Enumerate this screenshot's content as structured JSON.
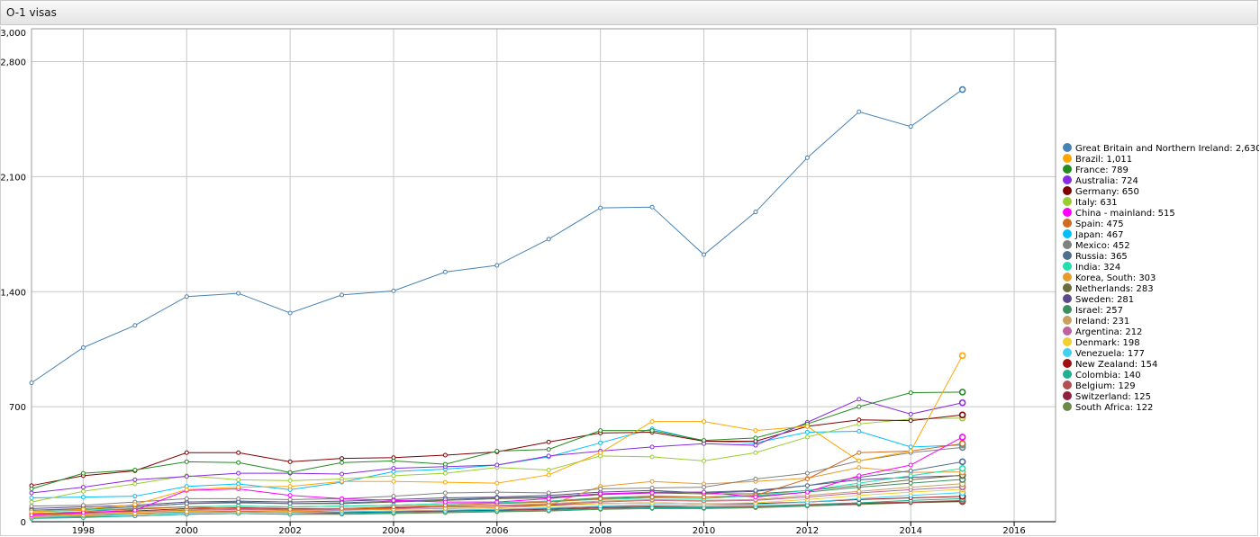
{
  "window": {
    "title": "O-1 visas"
  },
  "chart_data": {
    "type": "line",
    "title": "O-1 visas",
    "x": [
      1997,
      1998,
      1999,
      2000,
      2001,
      2002,
      2003,
      2004,
      2005,
      2006,
      2007,
      2008,
      2009,
      2010,
      2011,
      2012,
      2013,
      2014,
      2015
    ],
    "xlim": [
      1997,
      2016.8
    ],
    "ylim": [
      0,
      3000
    ],
    "x_ticks": [
      1998,
      2000,
      2002,
      2004,
      2006,
      2008,
      2010,
      2012,
      2014,
      2016
    ],
    "x_tick_labels": [
      "1998",
      "2000",
      "2002",
      "2004",
      "2006",
      "2008",
      "2010",
      "2012",
      "2014",
      "2016"
    ],
    "y_ticks": [
      0,
      700,
      1400,
      2100,
      2800,
      3000
    ],
    "y_tick_labels": [
      "0",
      "700",
      "1,400",
      "2,100",
      "2,800",
      "3,000"
    ],
    "grid": true,
    "legend_position": "right",
    "series": [
      {
        "name": "Great Britain and Northern Ireland",
        "label": "Great Britain and Northern Ireland: 2,630",
        "color": "#4682b4",
        "values": [
          845,
          1060,
          1195,
          1370,
          1390,
          1270,
          1380,
          1405,
          1520,
          1560,
          1720,
          1910,
          1915,
          1625,
          1885,
          2215,
          2495,
          2405,
          2630
        ]
      },
      {
        "name": "Brazil",
        "label": "Brazil: 1,011",
        "color": "#ffa500",
        "values": [
          60,
          75,
          105,
          195,
          210,
          215,
          245,
          245,
          240,
          235,
          285,
          420,
          610,
          610,
          555,
          580,
          370,
          430,
          1011
        ]
      },
      {
        "name": "France",
        "label": "France: 789",
        "color": "#228b22",
        "values": [
          200,
          295,
          315,
          365,
          360,
          300,
          360,
          370,
          350,
          430,
          440,
          555,
          555,
          495,
          510,
          595,
          700,
          785,
          789
        ]
      },
      {
        "name": "Australia",
        "label": "Australia: 724",
        "color": "#8a2be2",
        "values": [
          175,
          210,
          255,
          275,
          295,
          295,
          290,
          325,
          335,
          345,
          400,
          430,
          455,
          475,
          465,
          605,
          745,
          655,
          724
        ]
      },
      {
        "name": "Germany",
        "label": "Germany: 650",
        "color": "#800000",
        "values": [
          220,
          280,
          310,
          420,
          420,
          365,
          385,
          390,
          405,
          425,
          485,
          540,
          545,
          490,
          490,
          580,
          620,
          615,
          650
        ]
      },
      {
        "name": "Italy",
        "label": "Italy: 631",
        "color": "#9acd32",
        "values": [
          120,
          185,
          230,
          280,
          255,
          250,
          260,
          280,
          295,
          330,
          315,
          400,
          395,
          370,
          420,
          515,
          595,
          625,
          631
        ]
      },
      {
        "name": "China - mainland",
        "label": "China - mainland: 515",
        "color": "#ff00ff",
        "values": [
          40,
          55,
          70,
          190,
          200,
          160,
          140,
          130,
          120,
          120,
          140,
          170,
          175,
          180,
          150,
          180,
          280,
          345,
          515
        ]
      },
      {
        "name": "Spain",
        "label": "Spain: 475",
        "color": "#d2691e",
        "values": [
          50,
          60,
          80,
          90,
          80,
          75,
          80,
          90,
          100,
          110,
          120,
          140,
          150,
          150,
          160,
          260,
          420,
          430,
          475
        ]
      },
      {
        "name": "Japan",
        "label": "Japan: 467",
        "color": "#00bfff",
        "values": [
          145,
          150,
          155,
          215,
          230,
          195,
          240,
          305,
          320,
          345,
          395,
          480,
          565,
          490,
          480,
          545,
          550,
          455,
          467
        ]
      },
      {
        "name": "Mexico",
        "label": "Mexico: 452",
        "color": "#808080",
        "values": [
          95,
          100,
          120,
          140,
          140,
          135,
          140,
          155,
          175,
          180,
          175,
          200,
          205,
          210,
          260,
          295,
          370,
          420,
          452
        ]
      },
      {
        "name": "Russia",
        "label": "Russia: 365",
        "color": "#4f6f8f",
        "values": [
          70,
          75,
          90,
          110,
          120,
          110,
          115,
          125,
          135,
          145,
          150,
          170,
          180,
          180,
          190,
          220,
          270,
          310,
          365
        ]
      },
      {
        "name": "India",
        "label": "India: 324",
        "color": "#20e0b0",
        "values": [
          60,
          70,
          80,
          90,
          95,
          90,
          95,
          100,
          110,
          115,
          125,
          135,
          145,
          140,
          160,
          190,
          235,
          280,
          324
        ]
      },
      {
        "name": "Korea, South",
        "label": "Korea, South: 303",
        "color": "#e89a2e",
        "values": [
          30,
          40,
          50,
          60,
          60,
          60,
          70,
          75,
          80,
          85,
          100,
          215,
          245,
          230,
          245,
          265,
          330,
          300,
          303
        ]
      },
      {
        "name": "Netherlands",
        "label": "Netherlands: 283",
        "color": "#6b6b3b",
        "values": [
          70,
          80,
          90,
          110,
          115,
          110,
          110,
          120,
          130,
          140,
          145,
          165,
          175,
          170,
          170,
          190,
          220,
          255,
          283
        ]
      },
      {
        "name": "Sweden",
        "label": "Sweden: 281",
        "color": "#5a4a8a",
        "values": [
          80,
          90,
          100,
          120,
          125,
          120,
          125,
          135,
          145,
          150,
          160,
          180,
          190,
          175,
          185,
          220,
          255,
          270,
          281
        ]
      },
      {
        "name": "Israel",
        "label": "Israel: 257",
        "color": "#3c9060",
        "values": [
          60,
          70,
          75,
          90,
          95,
          90,
          95,
          100,
          110,
          115,
          125,
          145,
          155,
          150,
          155,
          180,
          210,
          235,
          257
        ]
      },
      {
        "name": "Ireland",
        "label": "Ireland: 231",
        "color": "#c8a060",
        "values": [
          45,
          55,
          60,
          75,
          80,
          75,
          80,
          90,
          95,
          100,
          110,
          125,
          135,
          130,
          135,
          160,
          185,
          210,
          231
        ]
      },
      {
        "name": "Argentina",
        "label": "Argentina: 212",
        "color": "#c060a0",
        "values": [
          40,
          50,
          60,
          70,
          75,
          70,
          75,
          80,
          90,
          95,
          105,
          120,
          130,
          125,
          130,
          150,
          175,
          195,
          212
        ]
      },
      {
        "name": "Denmark",
        "label": "Denmark: 198",
        "color": "#f0d030",
        "values": [
          35,
          45,
          55,
          65,
          70,
          65,
          70,
          75,
          80,
          85,
          95,
          110,
          115,
          110,
          115,
          135,
          160,
          180,
          198
        ]
      },
      {
        "name": "Venezuela",
        "label": "Venezuela: 177",
        "color": "#40d0f0",
        "values": [
          25,
          35,
          45,
          55,
          60,
          55,
          60,
          65,
          70,
          75,
          85,
          95,
          105,
          100,
          105,
          120,
          140,
          160,
          177
        ]
      },
      {
        "name": "New Zealand",
        "label": "New Zealand: 154",
        "color": "#a01010",
        "values": [
          50,
          55,
          65,
          80,
          85,
          80,
          80,
          85,
          90,
          95,
          100,
          110,
          115,
          110,
          110,
          120,
          135,
          145,
          154
        ]
      },
      {
        "name": "Colombia",
        "label": "Colombia: 140",
        "color": "#20b090",
        "values": [
          20,
          25,
          35,
          45,
          50,
          45,
          50,
          55,
          60,
          65,
          70,
          80,
          85,
          85,
          90,
          100,
          115,
          130,
          140
        ]
      },
      {
        "name": "Belgium",
        "label": "Belgium: 129",
        "color": "#b05050",
        "values": [
          40,
          45,
          50,
          60,
          65,
          60,
          60,
          65,
          70,
          75,
          80,
          90,
          95,
          90,
          95,
          105,
          115,
          120,
          129
        ]
      },
      {
        "name": "Switzerland",
        "label": "Switzerland: 125",
        "color": "#902040",
        "values": [
          35,
          40,
          45,
          55,
          60,
          55,
          55,
          60,
          65,
          70,
          75,
          85,
          90,
          85,
          90,
          100,
          110,
          118,
          125
        ]
      },
      {
        "name": "South Africa",
        "label": "South Africa: 122",
        "color": "#6a8a4a",
        "values": [
          25,
          30,
          35,
          45,
          50,
          45,
          45,
          50,
          55,
          60,
          65,
          75,
          80,
          80,
          85,
          95,
          105,
          115,
          122
        ]
      }
    ]
  }
}
